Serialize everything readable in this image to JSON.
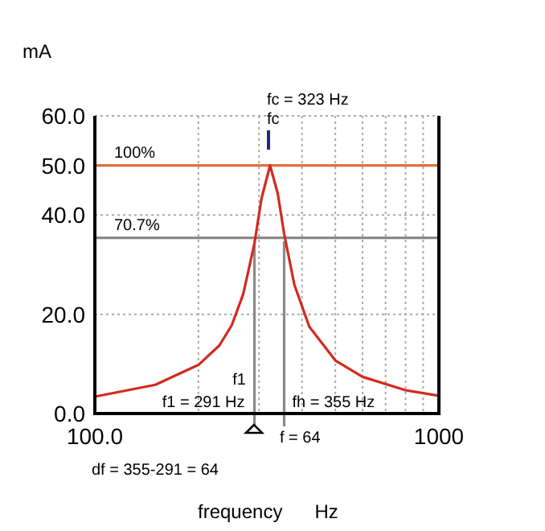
{
  "chart_data": {
    "type": "line",
    "ylabel": "mA",
    "xlabel": "frequency      Hz",
    "log": "x",
    "x": [
      100,
      150,
      200,
      230,
      250,
      270,
      291,
      305,
      323,
      340,
      355,
      380,
      420,
      500,
      600,
      800,
      1000
    ],
    "series": [
      {
        "color": "#d42a1e",
        "values": [
          3.4,
          5.8,
          9.8,
          13.7,
          17.8,
          24.1,
          34.3,
          43.3,
          50,
          44.4,
          36.2,
          26,
          17.5,
          10.7,
          7.4,
          4.7,
          3.6
        ]
      }
    ],
    "xlim": [
      100,
      1000
    ],
    "xticks": [
      {
        "value": 100,
        "label": "100.0"
      },
      {
        "value": 200,
        "label": null
      },
      {
        "value": 300,
        "label": null
      },
      {
        "value": 400,
        "label": null
      },
      {
        "value": 500,
        "label": null
      },
      {
        "value": 600,
        "label": null
      },
      {
        "value": 700,
        "label": null
      },
      {
        "value": 800,
        "label": null
      },
      {
        "value": 900,
        "label": null
      },
      1000
    ],
    "ylim": [
      0,
      60
    ],
    "yticks": [
      {
        "value": 0,
        "label": "0.0"
      },
      {
        "value": 20,
        "label": "20.0"
      },
      {
        "value": 40,
        "label": "40.0"
      },
      {
        "value": 50,
        "label": "50.0"
      },
      {
        "value": 60,
        "label": "60.0"
      }
    ],
    "grid": true,
    "marker": "none",
    "line_style": "solid",
    "ref_lines": [
      {
        "axis": "y",
        "value": 50,
        "color": "#e0703c"
      },
      {
        "axis": "y",
        "value": 35.4,
        "color": "#8a8a8a"
      },
      {
        "axis": "x",
        "value": 291,
        "label": "f1 = 291 Hz",
        "color": "#8a8a8a"
      },
      {
        "axis": "x",
        "value": 355,
        "label": "fh = 355 Hz",
        "color": "#8a8a8a"
      }
    ],
    "annotations": [
      "fc = 323 Hz",
      "fc",
      "f1",
      "f = 64",
      "df = 355-291 = 64",
      "100%",
      "70.7%"
    ]
  }
}
